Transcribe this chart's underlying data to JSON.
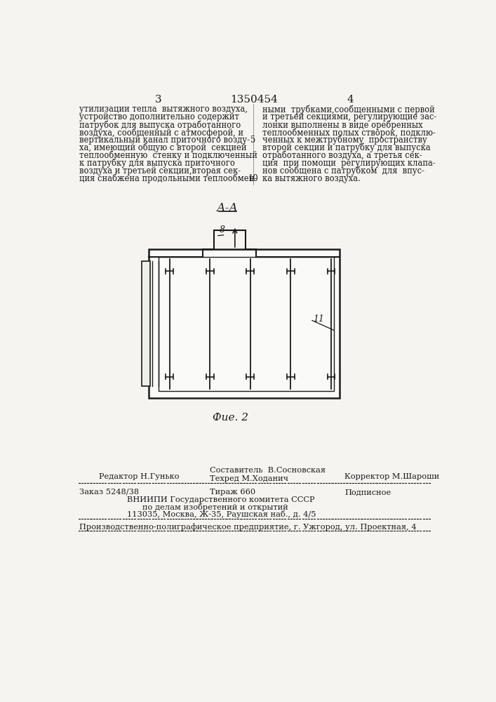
{
  "bg_color": "#f5f4f0",
  "line_color": "#1a1a1a",
  "page_num_left": "3",
  "page_num_center": "1350454",
  "page_num_right": "4",
  "text_left": [
    "утилизации тепла  вытяжного воздуха,",
    "устройство дополнительно содержит",
    "патрубок для выпуска отработанного",
    "воздуха, сообщенный с атмосферой, и",
    "вертикальный канал приточного возду-",
    "ха, имеющий общую с второй  секцией",
    "теплообменную  стенку и подключенный",
    "к патрубку для выпуска приточного",
    "воздуха и третьей секции,вторая сек-",
    "ция снабжена продольными теплообмен-"
  ],
  "text_right": [
    "ными  трубками,сообщенными с первой",
    "и третьей секциями, регулирующие зас-",
    "лонки выполнены в виде оребренных",
    "теплообменных полых створок, подклю-",
    "ченных к межтрубному  пространству",
    "второй секции и патрубку для выпуска",
    "отработанного воздуха, а третья сек-",
    "ция  при помощи  регулирующих клапа-",
    "нов сообщена с патрубком  для  впус-",
    "ка вытяжного воздуха."
  ],
  "line_number_5": "5",
  "line_number_10": "10",
  "section_label": "А-А",
  "label_8": "8",
  "label_11": "11",
  "fig_label": "Фие. 2",
  "editor_line": "Редактор Н.Гунько",
  "composer_line1": "Составитель  В.Сосновская",
  "composer_line2": "Техред М.Ходанич",
  "corrector_line": "Корректор М.Шароши",
  "order_line": "Заказ 5248/38",
  "tirazh_line": "Тираж 660",
  "podpisnoe_line": "Подписное",
  "vnipi_line1": "ВНИИПИ Государственного комитета СССР",
  "vnipi_line2": "по делам изобретений и открытий",
  "vnipi_line3": "113035, Москва, Ж-35, Раушская наб., д. 4/5",
  "production_line": "Производственно-полиграфическое предприятие, г. Ужгород, ул. Проектная, 4"
}
